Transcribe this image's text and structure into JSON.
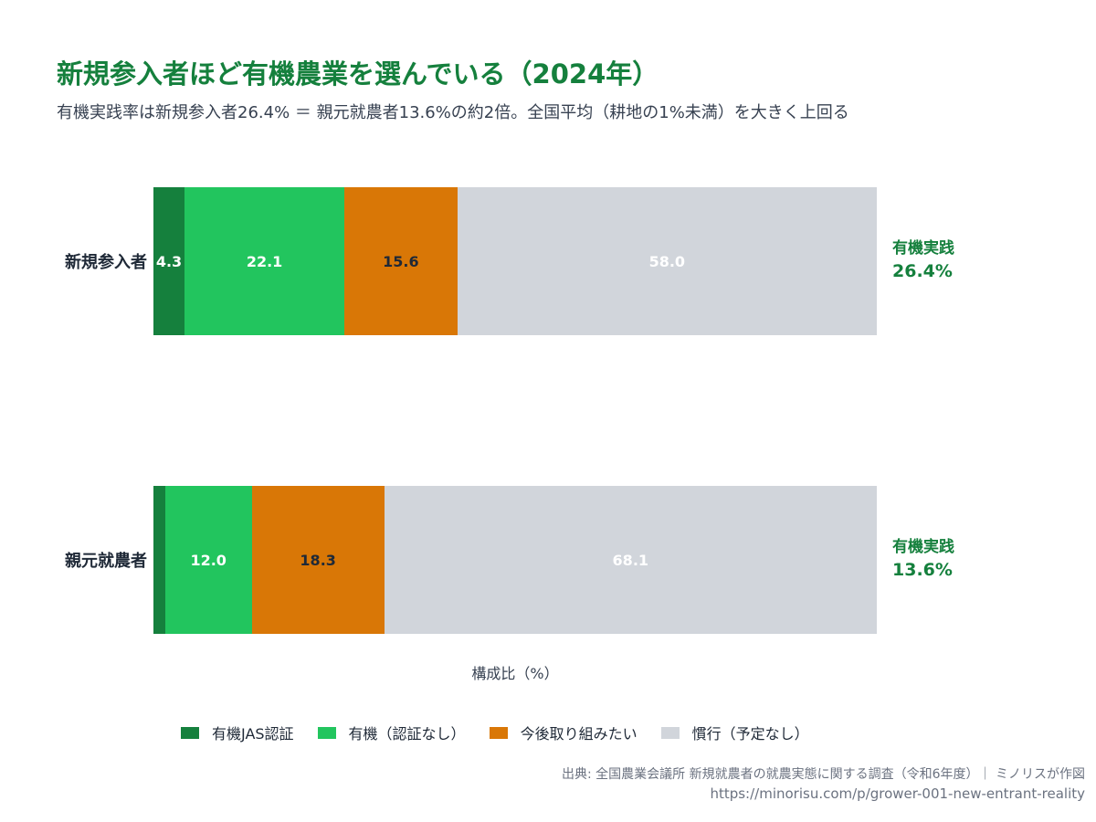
{
  "chart_data": {
    "type": "bar",
    "orientation": "horizontal",
    "stacked": true,
    "title": "新規参入者ほど有機農業を選んでいる（2024年）",
    "subtitle": "有機実践率は新規参入者26.4% ＝ 親元就農者13.6%の約2倍。全国平均（耕地の1%未満）を大きく上回る",
    "xlabel": "構成比（%）",
    "xlim": [
      0,
      100
    ],
    "grid": false,
    "legend_position": "bottom",
    "categories": [
      "新規参入者",
      "親元就農者"
    ],
    "series": [
      {
        "name": "有機JAS認証",
        "color": "#15803d",
        "values": [
          4.3,
          1.6
        ],
        "labels": [
          "4.3",
          ""
        ]
      },
      {
        "name": "有機（認証なし）",
        "color": "#22c55e",
        "values": [
          22.1,
          12.0
        ],
        "labels": [
          "22.1",
          "12.0"
        ]
      },
      {
        "name": "今後取り組みたい",
        "color": "#d97706",
        "values": [
          15.6,
          18.3
        ],
        "labels": [
          "15.6",
          "18.3"
        ]
      },
      {
        "name": "慣行（予定なし）",
        "color": "#d1d5db",
        "values": [
          58.0,
          68.1
        ],
        "labels": [
          "58.0",
          "68.1"
        ]
      }
    ],
    "organic_label": "有機実践",
    "organic_totals": [
      "26.4%",
      "13.6%"
    ]
  },
  "footer": {
    "source": "出典: 全国農業会議所 新規就農者の就農実態に関する調査（令和6年度）｜ ミノリスが作図",
    "url": "https://minorisu.com/p/grower-001-new-entrant-reality"
  }
}
